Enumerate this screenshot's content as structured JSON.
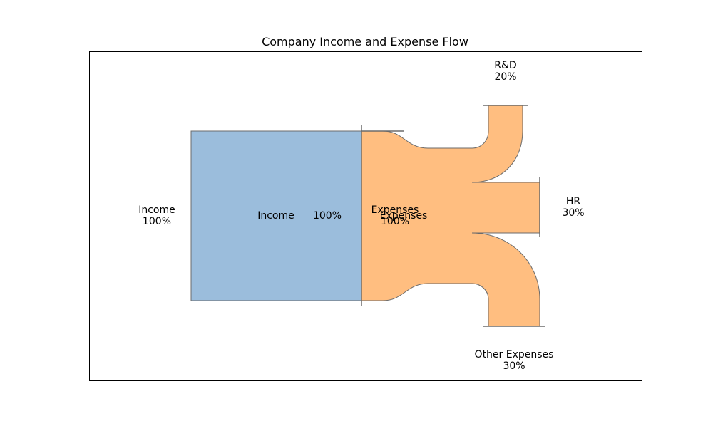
{
  "title": "Company Income and Expense Flow",
  "colors": {
    "income": "#9bbddc",
    "expenses": "#ffbe80",
    "edge": "#6b6b6b",
    "frame": "#000000"
  },
  "flows": [
    {
      "label": "Income",
      "value": "100%"
    },
    {
      "label": "Expenses",
      "value": "100%"
    },
    {
      "label": "R&D",
      "value": "20%"
    },
    {
      "label": "HR",
      "value": "30%"
    },
    {
      "label": "Other Expenses",
      "value": "30%"
    }
  ],
  "inner_labels": {
    "income_name": "Income",
    "income_value": "100%",
    "expenses_name": "Expenses"
  },
  "chart_data": {
    "type": "sankey",
    "title": "Company Income and Expense Flow",
    "nodes": [
      "Income",
      "Expenses",
      "R&D",
      "HR",
      "Other Expenses"
    ],
    "links": [
      {
        "source": "Income",
        "target": "Expenses",
        "value": 100
      },
      {
        "source": "Expenses",
        "target": "R&D",
        "value": 20
      },
      {
        "source": "Expenses",
        "target": "HR",
        "value": 30
      },
      {
        "source": "Expenses",
        "target": "Other Expenses",
        "value": 30
      }
    ]
  }
}
